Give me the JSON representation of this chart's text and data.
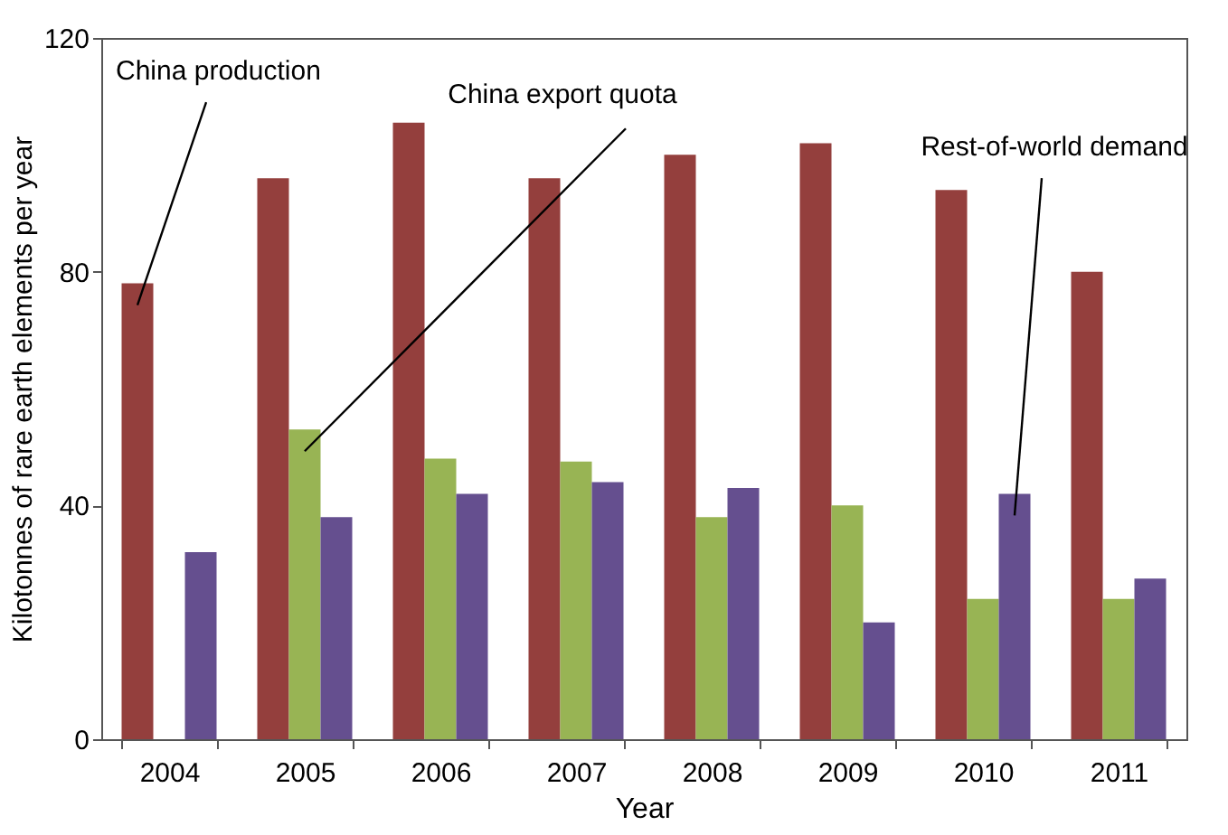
{
  "chart_data": {
    "type": "bar",
    "xlabel": "Year",
    "ylabel": "Kilotonnes of rare earth elements per year",
    "categories": [
      "2004",
      "2005",
      "2006",
      "2007",
      "2008",
      "2009",
      "2010",
      "2011"
    ],
    "series": [
      {
        "name": "China production",
        "color": "#943f3d",
        "values": [
          78,
          96,
          105.5,
          96,
          100,
          102,
          94,
          80
        ]
      },
      {
        "name": "China export quota",
        "color": "#98b454",
        "values": [
          null,
          53,
          48,
          47.5,
          38,
          40,
          24,
          24
        ]
      },
      {
        "name": "Rest-of-world demand",
        "color": "#654f8f",
        "values": [
          32,
          38,
          42,
          44,
          43,
          20,
          42,
          27.5
        ]
      }
    ],
    "ylim": [
      0,
      120
    ],
    "yticks": [
      0,
      40,
      80,
      120
    ],
    "grid": false,
    "legend": false
  }
}
